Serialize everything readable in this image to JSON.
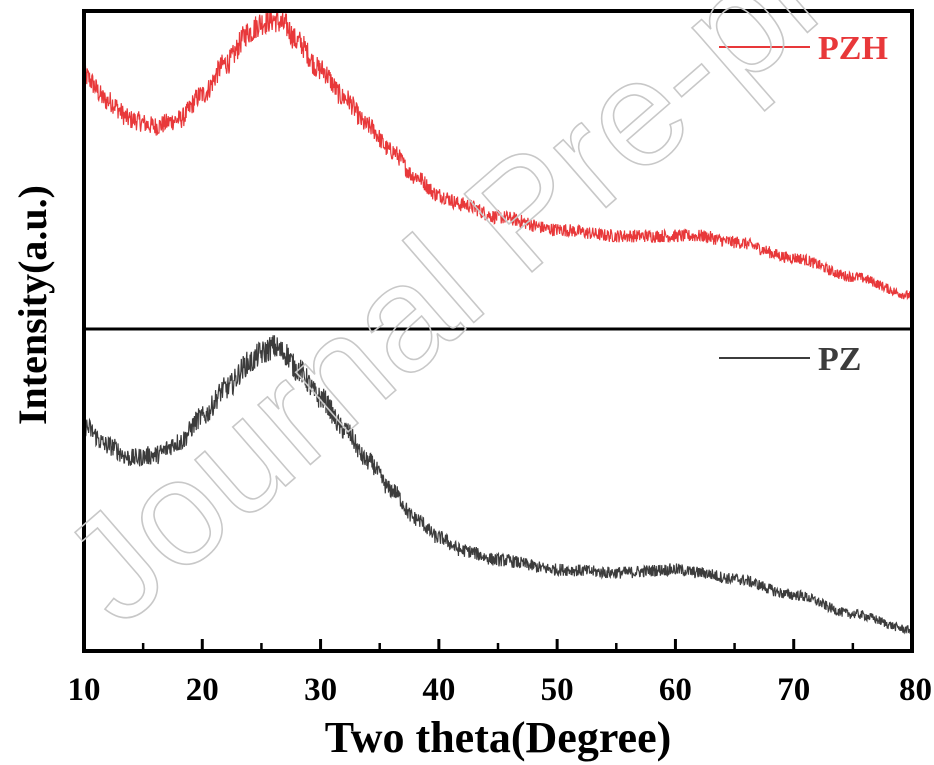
{
  "watermark": "Journal Pre-proof",
  "chart_data": {
    "type": "line",
    "layout": "stacked-panels",
    "xlabel": "Two theta(Degree)",
    "ylabel": "Intensity(a.u.)",
    "xlim": [
      10,
      80
    ],
    "xticks": [
      10,
      20,
      30,
      40,
      50,
      60,
      70,
      80
    ],
    "y_ticks_shown": false,
    "grid": false,
    "legend_position": "top-right of each panel",
    "series": [
      {
        "name": "PZH",
        "color": "#e8383a",
        "panel": "top",
        "x": [
          10,
          12,
          14,
          16,
          18,
          20,
          22,
          24,
          25,
          26,
          27,
          28,
          30,
          32,
          34,
          36,
          38,
          40,
          42,
          45,
          50,
          55,
          60,
          62,
          65,
          70,
          75,
          80
        ],
        "y": [
          0.8,
          0.72,
          0.66,
          0.64,
          0.66,
          0.74,
          0.84,
          0.94,
          0.97,
          0.98,
          0.96,
          0.91,
          0.82,
          0.73,
          0.64,
          0.56,
          0.48,
          0.42,
          0.39,
          0.35,
          0.31,
          0.29,
          0.29,
          0.29,
          0.27,
          0.22,
          0.16,
          0.1
        ]
      },
      {
        "name": "PZ",
        "color": "#3c3c3c",
        "panel": "bottom",
        "x": [
          10,
          12,
          14,
          16,
          18,
          20,
          22,
          24,
          25,
          26,
          27,
          28,
          30,
          32,
          34,
          36,
          38,
          40,
          42,
          45,
          50,
          55,
          60,
          62,
          65,
          70,
          75,
          80
        ],
        "y": [
          0.7,
          0.64,
          0.6,
          0.61,
          0.65,
          0.73,
          0.82,
          0.9,
          0.93,
          0.95,
          0.93,
          0.88,
          0.79,
          0.69,
          0.59,
          0.5,
          0.41,
          0.35,
          0.31,
          0.28,
          0.25,
          0.24,
          0.25,
          0.24,
          0.22,
          0.17,
          0.11,
          0.06
        ]
      }
    ]
  }
}
